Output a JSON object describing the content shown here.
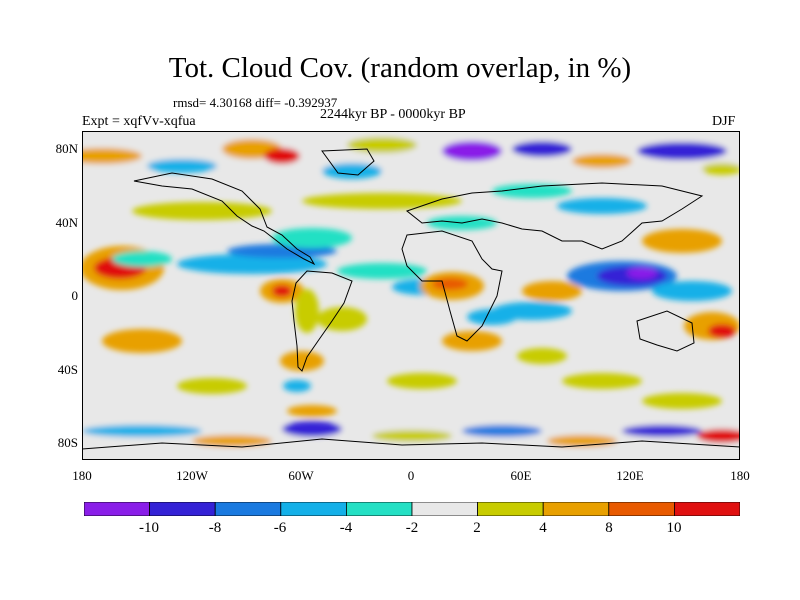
{
  "title": "Tot. Cloud Cov. (random overlap, in %)",
  "stats": "rmsd= 4.30168 diff= -0.392937",
  "period": "2244kyr BP - 0000kyr BP",
  "experiment": "Expt = xqfVv-xqfua",
  "season": "DJF",
  "map": {
    "projection": "cylindrical-equidistant",
    "lon_range": [
      -180,
      180
    ],
    "lat_range": [
      -90,
      90
    ],
    "x_ticks": [
      "180",
      "120W",
      "60W",
      "0",
      "60E",
      "120E",
      "180"
    ],
    "y_ticks": [
      "80N",
      "40N",
      "0",
      "40S",
      "80S"
    ],
    "features": [
      "coastlines",
      "filled contours of cloud cover difference"
    ]
  },
  "colorbar": {
    "labels": [
      "-10",
      "-8",
      "-6",
      "-4",
      "-2",
      "2",
      "4",
      "8",
      "10"
    ],
    "colors": [
      "#8a1ee8",
      "#3422d6",
      "#1a7ae0",
      "#14b0e8",
      "#24e0c4",
      "#e8e8e8",
      "#c8cc00",
      "#e8a000",
      "#e85a00",
      "#e01010"
    ]
  }
}
